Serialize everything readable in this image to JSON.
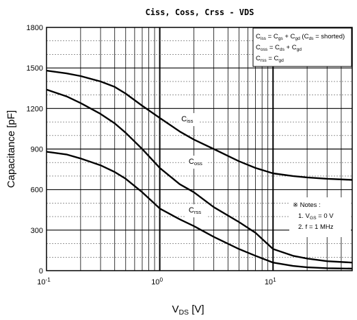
{
  "chart_data": {
    "type": "line",
    "title": "Ciss, Coss, Crss - VDS",
    "xlabel": {
      "main": "V",
      "sub": "DS",
      "unit": " [V]"
    },
    "ylabel": "Capacitance [pF]",
    "x_scale": "log",
    "xlim": [
      0.1,
      50
    ],
    "ylim": [
      0,
      1800
    ],
    "grid": true,
    "x_ticks": [
      {
        "base": "10",
        "exp": "-1"
      },
      {
        "base": "10",
        "exp": "0"
      },
      {
        "base": "10",
        "exp": "1"
      }
    ],
    "y_ticks": [
      0,
      300,
      600,
      900,
      1200,
      1500,
      1800
    ],
    "legend": {
      "lines": [
        [
          {
            "t": "C"
          },
          {
            "t": "iss",
            "sub": true
          },
          {
            "t": " = C"
          },
          {
            "t": "gs",
            "sub": true
          },
          {
            "t": " + C"
          },
          {
            "t": "gd",
            "sub": true
          },
          {
            "t": " (C"
          },
          {
            "t": "ds",
            "sub": true
          },
          {
            "t": " = shorted)"
          }
        ],
        [
          {
            "t": "C"
          },
          {
            "t": "oss",
            "sub": true
          },
          {
            "t": " = C"
          },
          {
            "t": "ds",
            "sub": true
          },
          {
            "t": " + C"
          },
          {
            "t": "gd",
            "sub": true
          }
        ],
        [
          {
            "t": "C"
          },
          {
            "t": "rss",
            "sub": true
          },
          {
            "t": " = C"
          },
          {
            "t": "gd",
            "sub": true
          }
        ]
      ]
    },
    "notes": {
      "header": "※ Notes :",
      "lines": [
        [
          {
            "t": "1. V"
          },
          {
            "t": "GS",
            "sub": true
          },
          {
            "t": " = 0 V"
          }
        ],
        [
          {
            "t": "2. f = 1 MHz"
          }
        ]
      ]
    },
    "series": [
      {
        "name": "Ciss",
        "label": {
          "main": "C",
          "sub": "iss"
        },
        "points": [
          [
            0.1,
            1480
          ],
          [
            0.15,
            1460
          ],
          [
            0.2,
            1440
          ],
          [
            0.3,
            1400
          ],
          [
            0.4,
            1360
          ],
          [
            0.5,
            1310
          ],
          [
            0.7,
            1220
          ],
          [
            1,
            1130
          ],
          [
            1.5,
            1030
          ],
          [
            2,
            970
          ],
          [
            3,
            900
          ],
          [
            5,
            810
          ],
          [
            7,
            760
          ],
          [
            10,
            720
          ],
          [
            15,
            700
          ],
          [
            20,
            690
          ],
          [
            30,
            680
          ],
          [
            50,
            672
          ]
        ]
      },
      {
        "name": "Coss",
        "label": {
          "main": "C",
          "sub": "oss"
        },
        "points": [
          [
            0.1,
            1340
          ],
          [
            0.15,
            1290
          ],
          [
            0.2,
            1240
          ],
          [
            0.3,
            1160
          ],
          [
            0.4,
            1090
          ],
          [
            0.5,
            1020
          ],
          [
            0.7,
            900
          ],
          [
            1,
            760
          ],
          [
            1.5,
            640
          ],
          [
            2,
            580
          ],
          [
            3,
            470
          ],
          [
            5,
            360
          ],
          [
            7,
            280
          ],
          [
            10,
            160
          ],
          [
            15,
            110
          ],
          [
            20,
            90
          ],
          [
            30,
            70
          ],
          [
            50,
            60
          ]
        ]
      },
      {
        "name": "Crss",
        "label": {
          "main": "C",
          "sub": "rss"
        },
        "points": [
          [
            0.1,
            880
          ],
          [
            0.15,
            860
          ],
          [
            0.2,
            830
          ],
          [
            0.3,
            780
          ],
          [
            0.4,
            730
          ],
          [
            0.5,
            680
          ],
          [
            0.7,
            580
          ],
          [
            1,
            460
          ],
          [
            1.5,
            380
          ],
          [
            2,
            330
          ],
          [
            3,
            250
          ],
          [
            5,
            160
          ],
          [
            7,
            110
          ],
          [
            10,
            60
          ],
          [
            15,
            35
          ],
          [
            20,
            25
          ],
          [
            30,
            18
          ],
          [
            50,
            15
          ]
        ]
      }
    ]
  }
}
